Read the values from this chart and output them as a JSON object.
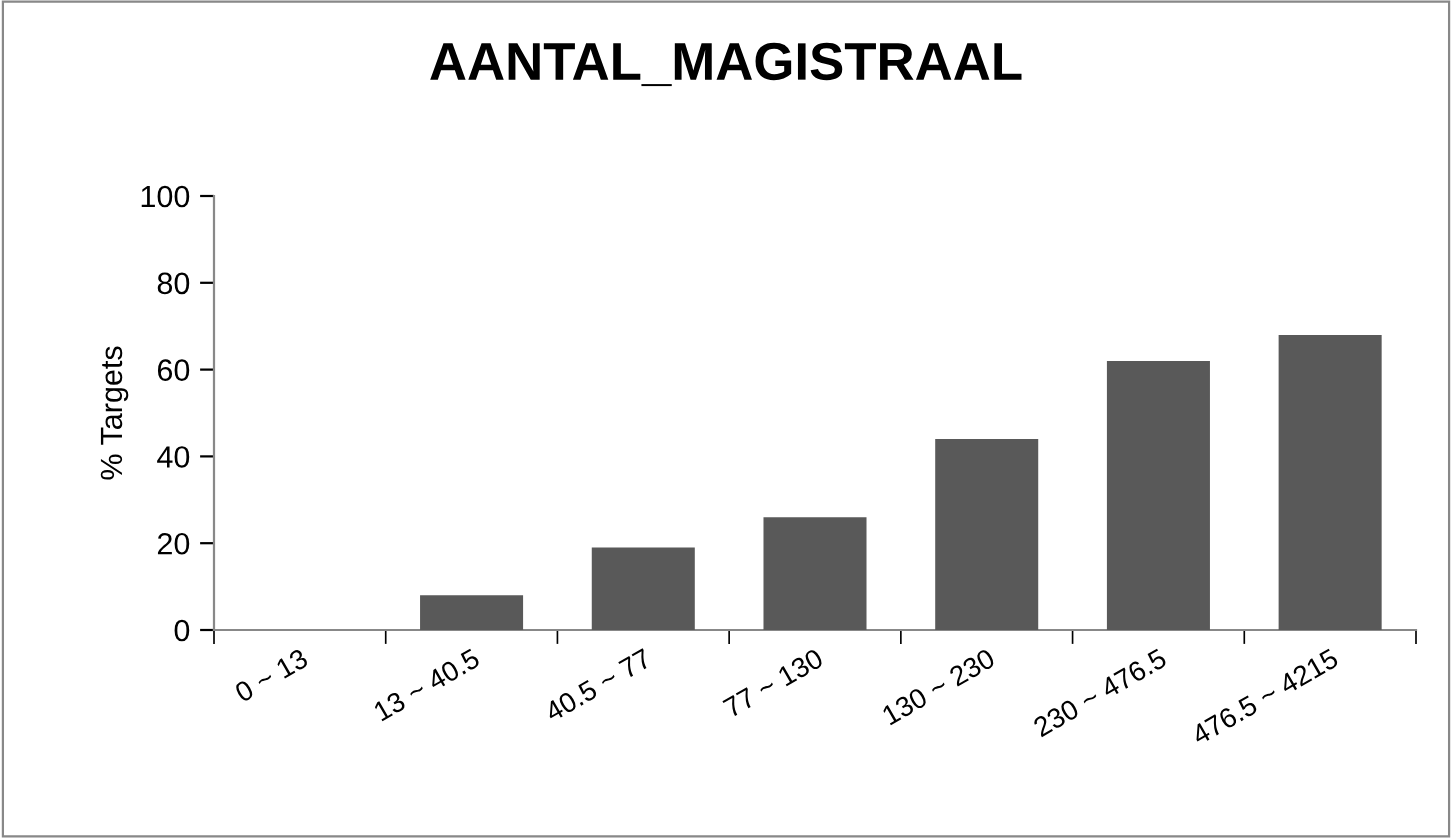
{
  "chart_data": {
    "type": "bar",
    "title": "AANTAL_MAGISTRAAL",
    "ylabel": "% Targets",
    "categories": [
      "0 ~ 13",
      "13 ~ 40.5",
      "40.5 ~ 77",
      "77 ~ 130",
      "130 ~ 230",
      "230 ~ 476.5",
      "476.5 ~ 4215"
    ],
    "values": [
      0,
      8,
      19,
      26,
      44,
      62,
      68
    ],
    "color": "#595959",
    "ylim": [
      0,
      100
    ],
    "yticks": [
      0,
      20,
      40,
      60,
      80,
      100
    ],
    "grid": false
  }
}
